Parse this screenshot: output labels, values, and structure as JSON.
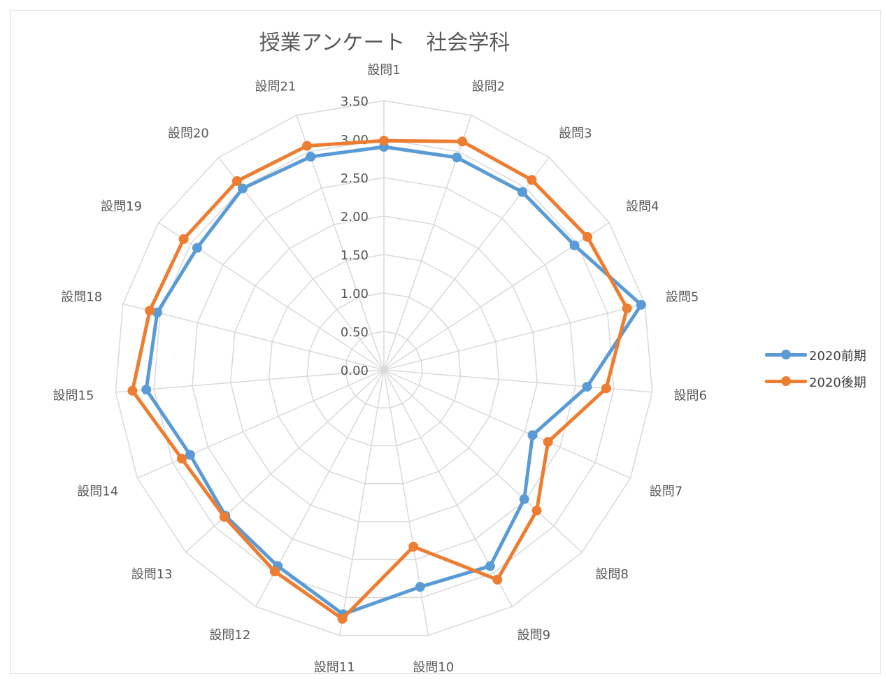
{
  "chart_data": {
    "type": "radar",
    "title": "授業アンケート　社会学科",
    "categories": [
      "設問1",
      "設問2",
      "設問3",
      "設問4",
      "設問5",
      "設問6",
      "設問7",
      "設問8",
      "設問9",
      "設問10",
      "設問11",
      "設問12",
      "設問13",
      "設問14",
      "設問15",
      "設問18",
      "設問19",
      "設問20",
      "設問21"
    ],
    "radial_ticks": [
      "0.00",
      "0.50",
      "1.00",
      "1.50",
      "2.00",
      "2.50",
      "3.00",
      "3.50"
    ],
    "rlim": [
      0,
      3.5
    ],
    "grid": true,
    "legend_position": "right",
    "series": [
      {
        "name": "2020前期",
        "color": "#5b9bd5",
        "values": [
          2.9,
          2.92,
          2.93,
          2.96,
          3.45,
          2.65,
          2.11,
          2.48,
          2.9,
          2.86,
          3.22,
          2.9,
          2.8,
          2.75,
          3.1,
          3.04,
          2.9,
          2.99,
          2.93
        ]
      },
      {
        "name": "2020後期",
        "color": "#ed7d31",
        "values": [
          2.98,
          3.14,
          3.13,
          3.16,
          3.26,
          2.9,
          2.33,
          2.7,
          3.1,
          2.33,
          3.28,
          2.98,
          2.82,
          2.87,
          3.28,
          3.14,
          3.11,
          3.11,
          3.08
        ]
      }
    ]
  }
}
